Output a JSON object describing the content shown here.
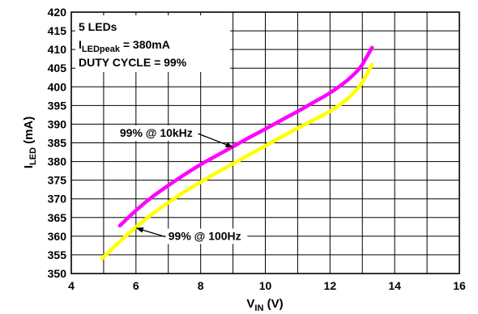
{
  "chart_data": {
    "type": "line",
    "title": "",
    "xlabel": {
      "main": "V",
      "sub": "IN",
      "unit": " (V)"
    },
    "ylabel": {
      "main": "I",
      "sub": "LED",
      "unit": " (mA)"
    },
    "xlim": [
      4,
      16
    ],
    "ylim": [
      350,
      420
    ],
    "x_ticks": [
      4,
      6,
      8,
      10,
      12,
      14,
      16
    ],
    "y_ticks": [
      350,
      355,
      360,
      365,
      370,
      375,
      380,
      385,
      390,
      395,
      400,
      405,
      410,
      415,
      420
    ],
    "grid": true,
    "legend_box": {
      "line1": "5 LEDs",
      "line2": {
        "main": "I",
        "sub": "LEDpeak",
        "rest": " = 380mA"
      },
      "line3": "DUTY CYCLE = 99%"
    },
    "series": [
      {
        "color": "#ff00ff",
        "x": [
          5.5,
          6.0,
          6.5,
          7.0,
          7.5,
          8.0,
          8.5,
          9.0,
          9.5,
          10.0,
          10.5,
          11.0,
          11.5,
          12.0,
          12.5,
          12.9,
          13.1,
          13.3
        ],
        "y": [
          362.8,
          366.9,
          370.5,
          373.6,
          376.5,
          379.2,
          381.6,
          384.0,
          386.4,
          388.7,
          391.1,
          393.4,
          395.9,
          398.4,
          401.5,
          404.8,
          407.5,
          410.5
        ]
      },
      {
        "color": "#ffff00",
        "x": [
          4.95,
          5.5,
          6.0,
          6.5,
          7.0,
          7.5,
          8.0,
          8.5,
          9.0,
          9.5,
          10.0,
          10.5,
          11.0,
          11.5,
          12.0,
          12.5,
          12.9,
          13.1,
          13.3
        ],
        "y": [
          354.0,
          358.6,
          362.4,
          365.9,
          369.0,
          371.9,
          374.5,
          377.0,
          379.4,
          381.8,
          384.2,
          386.6,
          388.9,
          391.2,
          393.5,
          396.5,
          400.0,
          402.8,
          406.0
        ]
      }
    ],
    "annotations": [
      {
        "text": "99% @ 10kHz",
        "series": 0,
        "point_x": 9.0,
        "point_y": 383.8,
        "text_x": 5.5,
        "text_y": 386.6
      },
      {
        "text": "99% @ 100Hz",
        "series": 1,
        "point_x": 6.0,
        "point_y": 362.2,
        "text_x": 7.0,
        "text_y": 359.0
      }
    ]
  }
}
